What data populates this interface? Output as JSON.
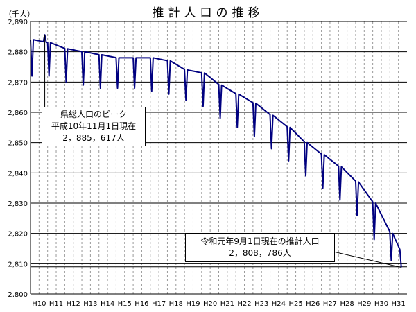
{
  "chart_data": {
    "type": "line",
    "title": "推計人口の推移",
    "ylabel": "（千人）",
    "xlabel": "",
    "ylim": [
      2800,
      2890
    ],
    "yticks": [
      2800,
      2810,
      2820,
      2830,
      2840,
      2850,
      2860,
      2870,
      2880,
      2890
    ],
    "ytick_labels": [
      "2,800",
      "2,810",
      "2,820",
      "2,830",
      "2,840",
      "2,850",
      "2,860",
      "2,870",
      "2,880",
      "2,890"
    ],
    "categories": [
      "H10",
      "H11",
      "H12",
      "H13",
      "H14",
      "H15",
      "H16",
      "H17",
      "H18",
      "H19",
      "H20",
      "H21",
      "H22",
      "H23",
      "H24",
      "H25",
      "H26",
      "H27",
      "H28",
      "H29",
      "H30",
      "H31"
    ],
    "grid": {
      "horizontal": true,
      "vertical_dashed": true
    },
    "reference_line": 2809,
    "series": [
      {
        "monthly_starts": [
          2884,
          2883,
          2881,
          2880,
          2879,
          2878,
          2878,
          2878,
          2877,
          2874,
          2873,
          2869,
          2866,
          2863,
          2859,
          2855,
          2850,
          2846,
          2842,
          2837,
          2830,
          2820
        ],
        "dips": [
          2872,
          2872,
          2870,
          2869,
          2868,
          2868,
          2868,
          2867,
          2866,
          2864,
          2862,
          2858,
          2855,
          2852,
          2848,
          2844,
          2839,
          2835,
          2831,
          2826,
          2818,
          2811
        ],
        "peak_month_value": 2885.6,
        "last_value": 2808.8
      }
    ],
    "annotations": [
      {
        "lines": [
          "県総人口のピーク",
          "平成10年11月1日現在",
          "2，885，617人"
        ]
      },
      {
        "lines": [
          "令和元年9月1日現在の推計人口",
          "2，808，786人"
        ]
      }
    ],
    "colors": {
      "line": "#000080",
      "grid": "#000000",
      "dash": "#999999",
      "background": "#ffffff"
    }
  }
}
